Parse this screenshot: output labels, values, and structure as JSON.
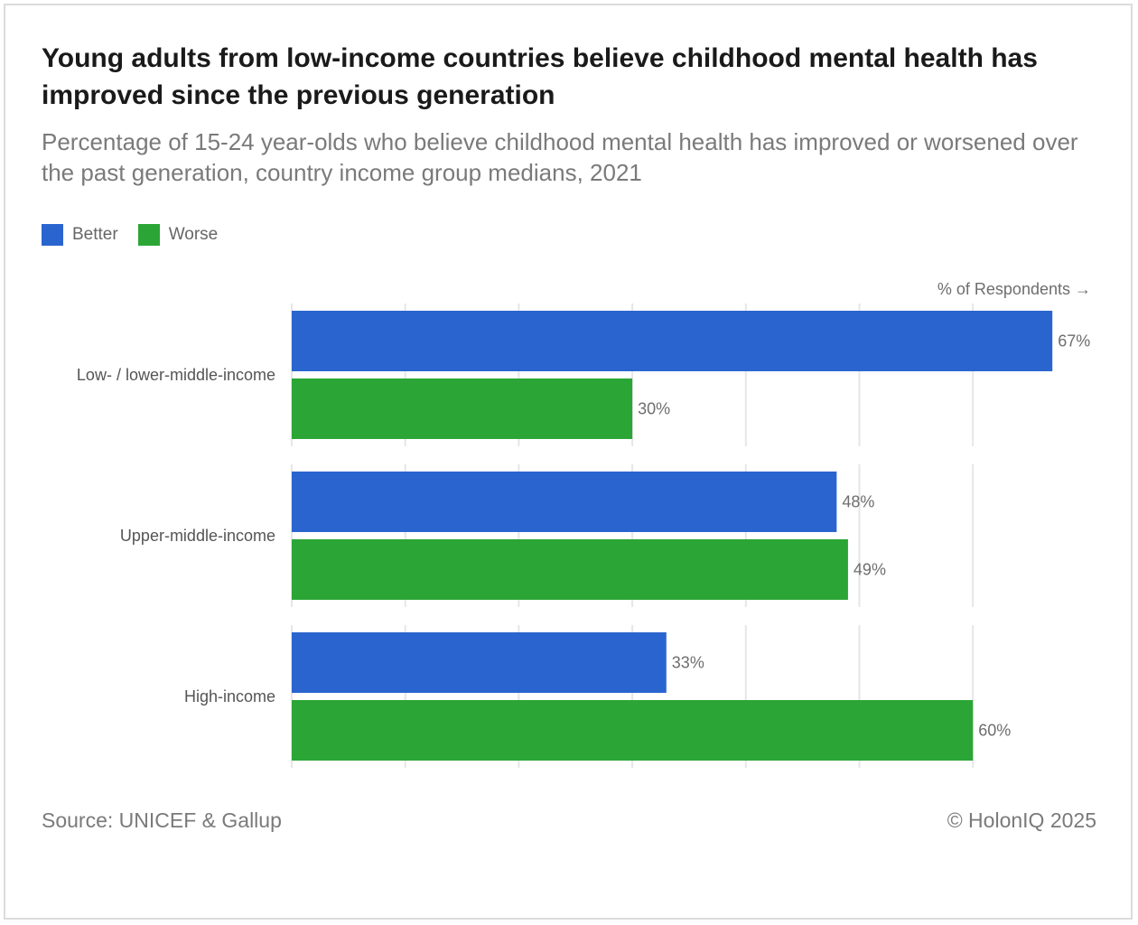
{
  "title": "Young adults from low-income countries believe childhood mental health has improved since the previous generation",
  "subtitle": "Percentage of 15-24 year-olds who believe childhood mental health has improved or worsened over the past generation, country income group medians, 2021",
  "legend": [
    {
      "label": "Better",
      "color": "#2a65cf"
    },
    {
      "label": "Worse",
      "color": "#2ba636"
    }
  ],
  "axis_note": "% of Respondents →",
  "source": "Source: UNICEF & Gallup",
  "copyright": "© HolonIQ 2025",
  "chart_data": {
    "type": "bar",
    "orientation": "horizontal",
    "title": "Young adults from low-income countries believe childhood mental health has improved since the previous generation",
    "subtitle": "Percentage of 15-24 year-olds who believe childhood mental health has improved or worsened over the past generation, country income group medians, 2021",
    "categories": [
      "Low- / lower-middle-income",
      "Upper-middle-income",
      "High-income"
    ],
    "series": [
      {
        "name": "Better",
        "color": "#2a65cf",
        "values": [
          67,
          48,
          33
        ]
      },
      {
        "name": "Worse",
        "color": "#2ba636",
        "values": [
          30,
          49,
          60
        ]
      }
    ],
    "data_labels": [
      [
        "67%",
        "48%",
        "33%"
      ],
      [
        "30%",
        "49%",
        "60%"
      ]
    ],
    "xlabel": "% of Respondents",
    "xlim": [
      0,
      70
    ],
    "grid": true,
    "legend_position": "top-left"
  }
}
